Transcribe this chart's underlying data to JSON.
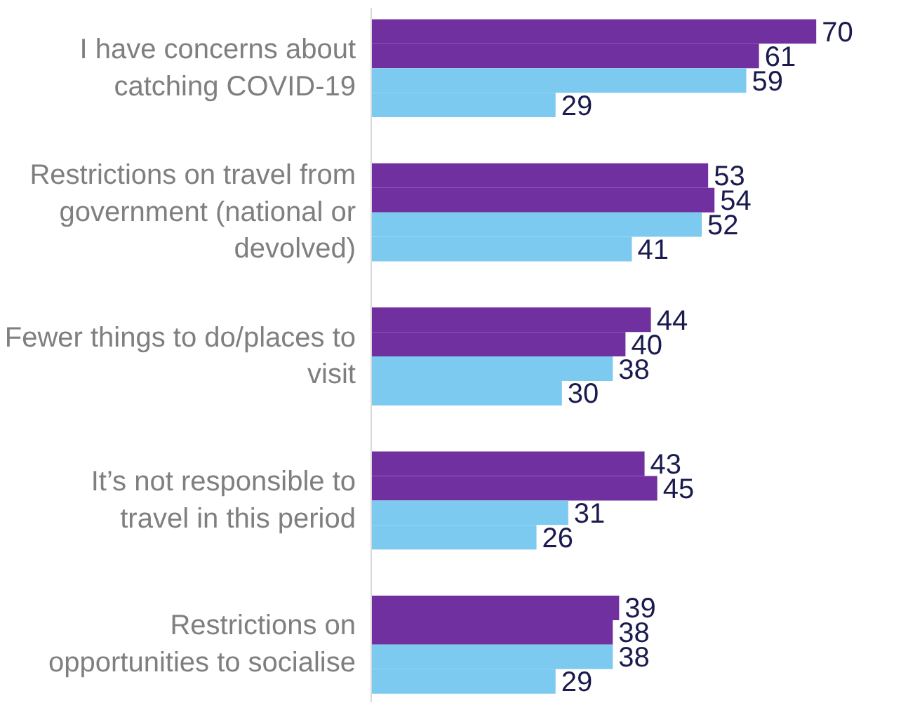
{
  "chart_data": {
    "type": "bar",
    "orientation": "horizontal",
    "data_labels": true,
    "tick_labels": "y",
    "categories": [
      "I have concerns about catching COVID-19",
      "Restrictions on travel from government (national or devolved)",
      "Fewer things to do/places to visit",
      "It’s not responsible to travel in this period",
      "Restrictions on opportunities to socialise"
    ],
    "series": [
      {
        "color": "#7030a0",
        "values": [
          70,
          53,
          44,
          43,
          39
        ]
      },
      {
        "color": "#7030a0",
        "values": [
          61,
          54,
          40,
          45,
          38
        ]
      },
      {
        "color": "#7ccaf0",
        "values": [
          59,
          52,
          38,
          31,
          38
        ]
      },
      {
        "color": "#7ccaf0",
        "values": [
          29,
          41,
          30,
          26,
          29
        ]
      }
    ]
  }
}
